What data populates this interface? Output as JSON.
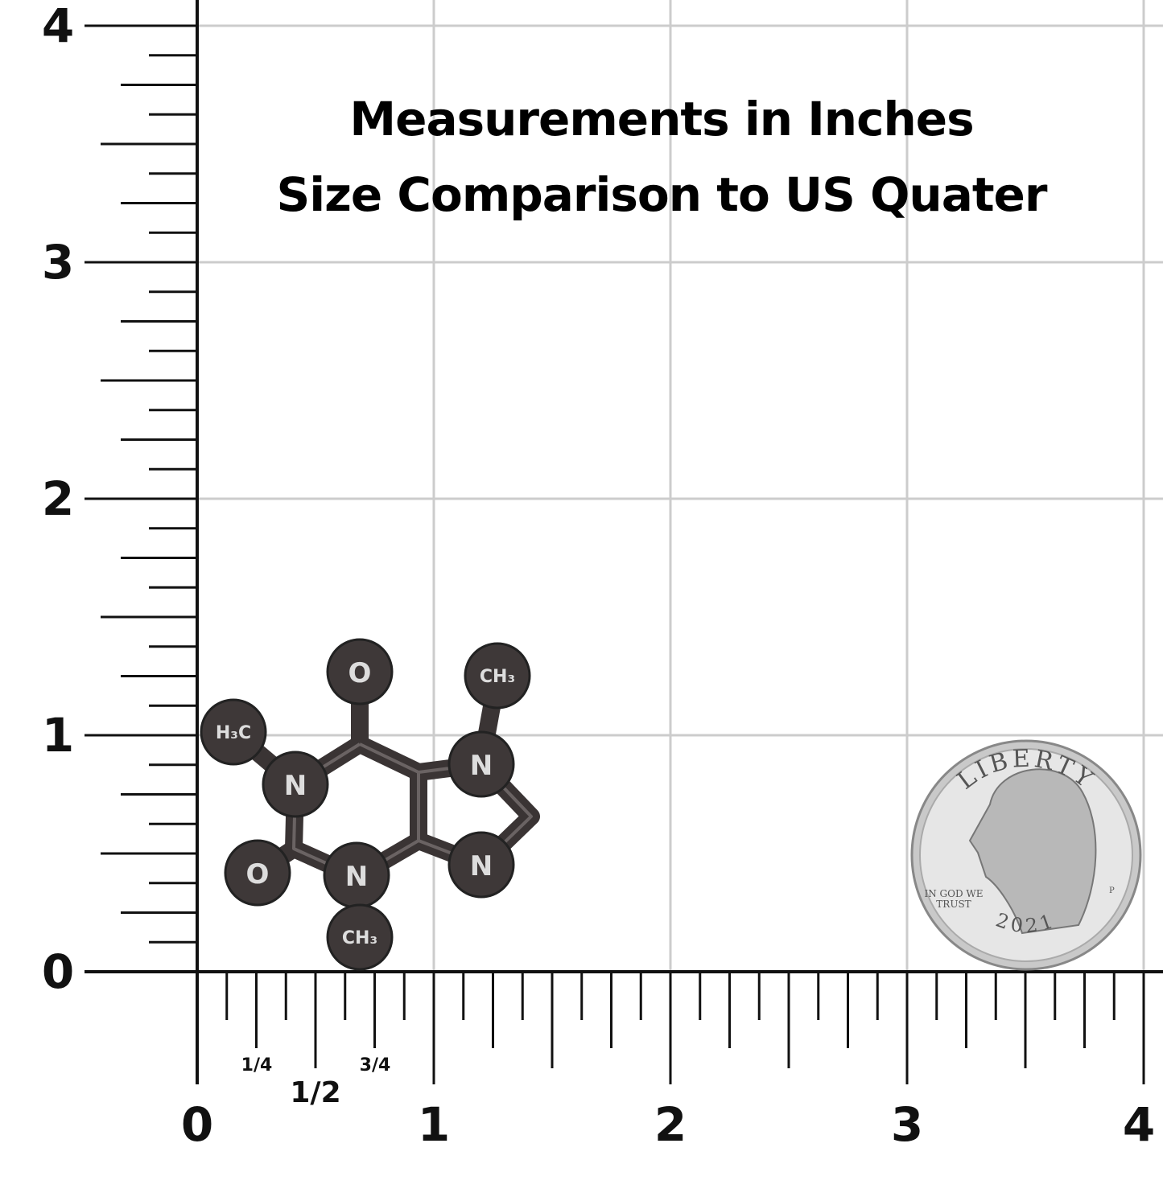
{
  "header": {
    "lines": [
      "Measurements in Inches",
      "Size Comparison to US Quater"
    ]
  },
  "ruler": {
    "y_labels": [
      "0",
      "1",
      "2",
      "3",
      "4"
    ],
    "x_labels": [
      "0",
      "1",
      "2",
      "3",
      "4"
    ],
    "fraction_labels": [
      "1/4",
      "1/2",
      "3/4"
    ]
  },
  "molecule": {
    "atoms": [
      "O",
      "H₃C",
      "N",
      "O",
      "N",
      "CH₃",
      "CH₃",
      "N",
      "N"
    ]
  },
  "coin": {
    "motto": "LIBERTY",
    "trust": [
      "IN GOD WE",
      "TRUST"
    ],
    "year": "2021",
    "mint": "P"
  }
}
